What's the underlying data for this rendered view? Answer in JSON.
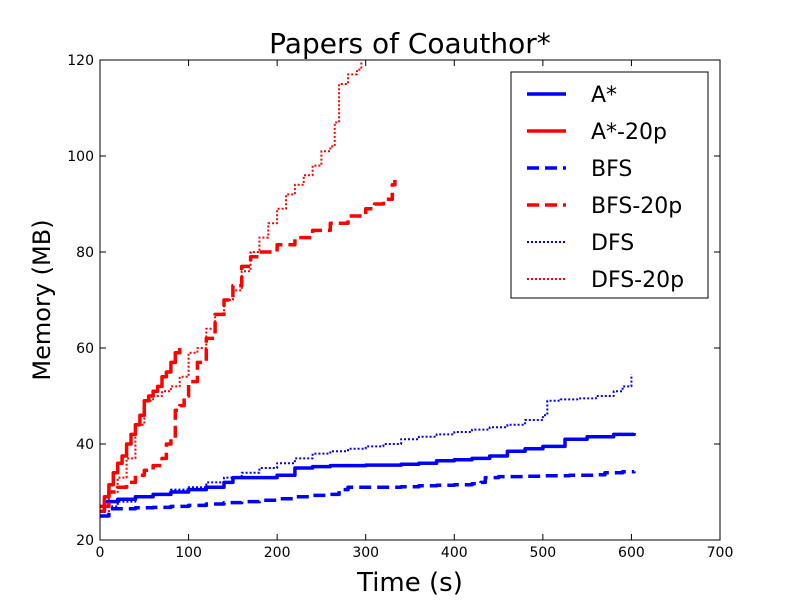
{
  "chart_data": {
    "type": "line",
    "title": "Papers of Coauthor*",
    "xlabel": "Time (s)",
    "ylabel": "Memory (MB)",
    "xlim": [
      0,
      700
    ],
    "ylim": [
      20,
      120
    ],
    "xticks": [
      0,
      100,
      200,
      300,
      400,
      500,
      600,
      700
    ],
    "yticks": [
      20,
      40,
      60,
      80,
      100,
      120
    ],
    "grid": false,
    "legend_position": "top-right",
    "series": [
      {
        "name": "A*",
        "color": "#0000ff",
        "style": "solid",
        "x": [
          0,
          5,
          20,
          40,
          60,
          80,
          100,
          120,
          140,
          150,
          180,
          200,
          215,
          220,
          240,
          260,
          280,
          300,
          320,
          340,
          360,
          380,
          400,
          420,
          440,
          460,
          480,
          500,
          520,
          525,
          550,
          580,
          603
        ],
        "y": [
          26,
          28,
          28.5,
          29,
          29.5,
          30,
          30.5,
          31,
          32,
          33,
          33,
          33.5,
          33.5,
          35,
          35.3,
          35.5,
          35.5,
          35.6,
          35.6,
          35.8,
          36,
          36.5,
          36.7,
          37,
          37.5,
          38.5,
          39,
          39.5,
          39.5,
          41,
          41.5,
          42,
          42.3
        ]
      },
      {
        "name": "A*-20p",
        "color": "#ff0000",
        "style": "solid",
        "x": [
          0,
          5,
          10,
          15,
          20,
          25,
          30,
          35,
          40,
          45,
          50,
          55,
          60,
          65,
          70,
          75,
          80,
          85,
          90
        ],
        "y": [
          26,
          29,
          31.5,
          34,
          36,
          37.5,
          40,
          42,
          44,
          46,
          49,
          50,
          51,
          52,
          54,
          55,
          57,
          59,
          60
        ]
      },
      {
        "name": "BFS",
        "color": "#0000ff",
        "style": "dashed",
        "x": [
          0,
          10,
          40,
          60,
          80,
          100,
          120,
          140,
          160,
          180,
          200,
          220,
          240,
          260,
          270,
          280,
          300,
          320,
          340,
          360,
          380,
          400,
          420,
          430,
          435,
          450,
          480,
          500,
          530,
          560,
          570,
          590,
          603
        ],
        "y": [
          25,
          26.5,
          26.7,
          26.8,
          27,
          27.2,
          27.5,
          27.8,
          28,
          28.3,
          28.6,
          29,
          29.3,
          29.5,
          30.5,
          31,
          31,
          31,
          31.1,
          31.3,
          31.4,
          31.5,
          31.7,
          32,
          33,
          33.2,
          33.3,
          33.4,
          33.5,
          33.6,
          34,
          34.2,
          34.3
        ]
      },
      {
        "name": "BFS-20p",
        "color": "#ff0000",
        "style": "dashed",
        "x": [
          0,
          10,
          20,
          30,
          40,
          50,
          60,
          70,
          75,
          80,
          85,
          90,
          95,
          100,
          110,
          120,
          130,
          140,
          150,
          160,
          170,
          180,
          200,
          220,
          240,
          260,
          280,
          300,
          310,
          320,
          330,
          333
        ],
        "y": [
          27,
          30,
          31,
          32,
          33.5,
          34.5,
          35.5,
          37,
          40,
          41,
          47,
          48,
          50,
          53,
          57,
          62,
          67,
          70,
          73,
          77,
          79,
          80,
          81.5,
          83,
          84.5,
          86,
          87.5,
          89,
          90,
          91,
          94,
          95
        ]
      },
      {
        "name": "DFS",
        "color": "#0000ff",
        "style": "dotted",
        "x": [
          0,
          10,
          20,
          40,
          60,
          80,
          100,
          120,
          140,
          160,
          180,
          200,
          220,
          240,
          260,
          280,
          300,
          320,
          340,
          360,
          380,
          400,
          420,
          440,
          460,
          480,
          500,
          505,
          520,
          540,
          560,
          580,
          590,
          600
        ],
        "y": [
          26,
          27,
          28,
          29,
          29.5,
          30.5,
          31,
          32,
          33,
          34,
          35,
          36,
          37,
          38,
          38.5,
          39,
          39.5,
          40,
          41,
          41.5,
          42,
          42.5,
          43,
          43.5,
          44,
          45,
          46,
          49,
          49.3,
          49.5,
          50,
          51,
          52,
          54.5
        ]
      },
      {
        "name": "DFS-20p",
        "color": "#ff0000",
        "style": "dotted",
        "x": [
          0,
          10,
          20,
          30,
          40,
          50,
          60,
          70,
          80,
          90,
          100,
          110,
          120,
          130,
          140,
          150,
          160,
          170,
          180,
          190,
          200,
          210,
          220,
          230,
          240,
          250,
          260,
          265,
          270,
          280,
          290,
          295
        ],
        "y": [
          26,
          30,
          33,
          37,
          44,
          49,
          50,
          51,
          52,
          54,
          59,
          60,
          64,
          67,
          70,
          72,
          76,
          80,
          83,
          86,
          89,
          92,
          94,
          96,
          98,
          101,
          102,
          107,
          115,
          117,
          118,
          120
        ]
      }
    ]
  }
}
